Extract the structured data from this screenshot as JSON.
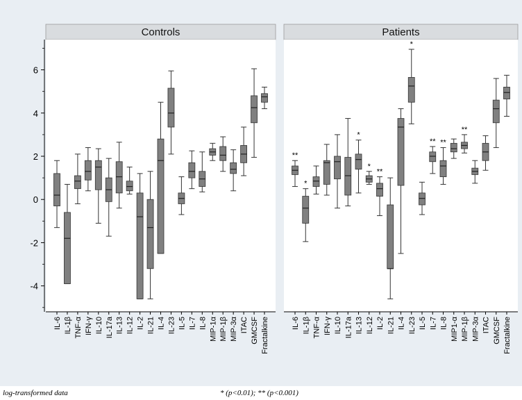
{
  "chart_data": [
    {
      "type": "box",
      "title": "Controls",
      "ylim": [
        -5.2,
        7.4
      ],
      "yticks": [
        -4,
        -2,
        0,
        2,
        4,
        6
      ],
      "yticklabels": [
        "-4",
        "-2",
        "0",
        "2",
        "4",
        "6"
      ],
      "categories": [
        "IL-6",
        "IL-1β",
        "TNF-α",
        "IFN-γ",
        "IL-10",
        "IL-17a",
        "IL-13",
        "IL-12",
        "IL-2",
        "IL-21",
        "IL-4",
        "IL-23",
        "IL-5",
        "IL-7",
        "IL-8",
        "MIP-1α",
        "MIP-1β",
        "MIP-3α",
        "ITAC",
        "GMCSF",
        "Fractalkine"
      ],
      "boxes": [
        {
          "lo": -1.3,
          "q1": -0.3,
          "med": 0.2,
          "q3": 1.2,
          "hi": 1.8
        },
        {
          "lo": -3.9,
          "q1": -3.9,
          "med": -1.8,
          "q3": -0.6,
          "hi": 0.7
        },
        {
          "lo": -0.2,
          "q1": 0.5,
          "med": 0.85,
          "q3": 1.1,
          "hi": 2.1
        },
        {
          "lo": 0.4,
          "q1": 0.9,
          "med": 1.3,
          "q3": 1.8,
          "hi": 2.4
        },
        {
          "lo": -1.1,
          "q1": 0.45,
          "med": 1.5,
          "q3": 1.8,
          "hi": 2.35
        },
        {
          "lo": -1.7,
          "q1": -0.1,
          "med": 0.45,
          "q3": 1.0,
          "hi": 1.9
        },
        {
          "lo": -0.4,
          "q1": 0.3,
          "med": 1.05,
          "q3": 1.75,
          "hi": 2.65
        },
        {
          "lo": 0.25,
          "q1": 0.4,
          "med": 0.6,
          "q3": 0.85,
          "hi": 1.5
        },
        {
          "lo": -4.6,
          "q1": -4.6,
          "med": -0.8,
          "q3": 0.3,
          "hi": 1.2
        },
        {
          "lo": -4.6,
          "q1": -3.2,
          "med": -1.3,
          "q3": 0.0,
          "hi": 1.3
        },
        {
          "lo": -2.5,
          "q1": -2.5,
          "med": 1.8,
          "q3": 2.8,
          "hi": 4.5
        },
        {
          "lo": 2.1,
          "q1": 3.35,
          "med": 4.0,
          "q3": 5.15,
          "hi": 5.95
        },
        {
          "lo": -0.7,
          "q1": -0.2,
          "med": 0.05,
          "q3": 0.3,
          "hi": 1.05
        },
        {
          "lo": 0.5,
          "q1": 1.0,
          "med": 1.3,
          "q3": 1.7,
          "hi": 2.25
        },
        {
          "lo": 0.35,
          "q1": 0.6,
          "med": 0.95,
          "q3": 1.3,
          "hi": 2.2
        },
        {
          "lo": 1.8,
          "q1": 2.05,
          "med": 2.2,
          "q3": 2.35,
          "hi": 2.6
        },
        {
          "lo": 1.3,
          "q1": 1.8,
          "med": 2.05,
          "q3": 2.45,
          "hi": 2.9
        },
        {
          "lo": 0.4,
          "q1": 1.2,
          "med": 1.4,
          "q3": 1.7,
          "hi": 2.3
        },
        {
          "lo": 1.1,
          "q1": 1.7,
          "med": 2.1,
          "q3": 2.5,
          "hi": 3.35
        },
        {
          "lo": 1.95,
          "q1": 3.55,
          "med": 4.25,
          "q3": 4.8,
          "hi": 6.05
        },
        {
          "lo": 4.2,
          "q1": 4.5,
          "med": 4.75,
          "q3": 4.9,
          "hi": 5.2
        }
      ]
    },
    {
      "type": "box",
      "title": "Patients",
      "ylim": [
        -5.2,
        7.4
      ],
      "categories": [
        "IL-6",
        "IL-1β",
        "TNF-α",
        "IFN-γ",
        "IL-10",
        "IL-17a",
        "IL-13",
        "IL-12",
        "IL-2",
        "IL-21",
        "IL-4",
        "IL-23",
        "IL-5",
        "IL-7",
        "IL-8",
        "MIP1-α",
        "MIP-1β",
        "MIP-3α",
        "ITAC",
        "GMCSF",
        "Fractalkine"
      ],
      "boxes": [
        {
          "lo": 0.6,
          "q1": 1.15,
          "med": 1.35,
          "q3": 1.55,
          "hi": 1.8,
          "sig": "**"
        },
        {
          "lo": -1.95,
          "q1": -1.1,
          "med": -0.4,
          "q3": 0.15,
          "hi": 0.5,
          "sig": "*"
        },
        {
          "lo": 0.25,
          "q1": 0.6,
          "med": 0.85,
          "q3": 1.05,
          "hi": 1.55,
          "sig": ""
        },
        {
          "lo": 0.2,
          "q1": 0.7,
          "med": 1.7,
          "q3": 1.8,
          "hi": 2.55,
          "sig": ""
        },
        {
          "lo": -0.4,
          "q1": 0.95,
          "med": 1.75,
          "q3": 2.0,
          "hi": 3.0,
          "sig": ""
        },
        {
          "lo": -0.3,
          "q1": 0.2,
          "med": 1.1,
          "q3": 1.95,
          "hi": 3.75,
          "sig": ""
        },
        {
          "lo": 0.3,
          "q1": 1.4,
          "med": 1.85,
          "q3": 2.1,
          "hi": 2.75,
          "sig": "*"
        },
        {
          "lo": 0.7,
          "q1": 0.8,
          "med": 0.95,
          "q3": 1.1,
          "hi": 1.3,
          "sig": "*"
        },
        {
          "lo": -0.75,
          "q1": 0.15,
          "med": 0.5,
          "q3": 0.75,
          "hi": 1.05,
          "sig": "**"
        },
        {
          "lo": -4.6,
          "q1": -3.2,
          "med": -3.2,
          "q3": -0.25,
          "hi": 1.0,
          "sig": ""
        },
        {
          "lo": -2.5,
          "q1": 0.65,
          "med": 3.35,
          "q3": 3.75,
          "hi": 4.2,
          "sig": ""
        },
        {
          "lo": 3.5,
          "q1": 4.5,
          "med": 5.25,
          "q3": 5.65,
          "hi": 6.95,
          "sig": "*"
        },
        {
          "lo": -0.7,
          "q1": -0.25,
          "med": 0.05,
          "q3": 0.3,
          "hi": 0.8,
          "sig": ""
        },
        {
          "lo": 1.2,
          "q1": 1.75,
          "med": 2.0,
          "q3": 2.2,
          "hi": 2.45,
          "sig": "**"
        },
        {
          "lo": 0.7,
          "q1": 1.05,
          "med": 1.55,
          "q3": 1.8,
          "hi": 2.4,
          "sig": "**"
        },
        {
          "lo": 1.9,
          "q1": 2.2,
          "med": 2.35,
          "q3": 2.6,
          "hi": 2.8,
          "sig": ""
        },
        {
          "lo": 2.15,
          "q1": 2.35,
          "med": 2.5,
          "q3": 2.65,
          "hi": 3.0,
          "sig": "**"
        },
        {
          "lo": 0.75,
          "q1": 1.15,
          "med": 1.3,
          "q3": 1.45,
          "hi": 1.8,
          "sig": ""
        },
        {
          "lo": 1.35,
          "q1": 1.8,
          "med": 2.2,
          "q3": 2.6,
          "hi": 2.95,
          "sig": ""
        },
        {
          "lo": 2.4,
          "q1": 3.55,
          "med": 4.2,
          "q3": 4.6,
          "hi": 5.6,
          "sig": ""
        },
        {
          "lo": 3.85,
          "q1": 4.65,
          "med": 4.95,
          "q3": 5.2,
          "hi": 5.75,
          "sig": ""
        }
      ]
    }
  ],
  "footer": {
    "left_note": "log-transformed data",
    "significance_note": "* (p<0.01); ** (p<0.001)"
  },
  "colors": {
    "box_fill": "#808080",
    "panel_bg": "#ffffff",
    "outer_bg": "#e9eef3",
    "header_bg": "#d9dcdf"
  }
}
